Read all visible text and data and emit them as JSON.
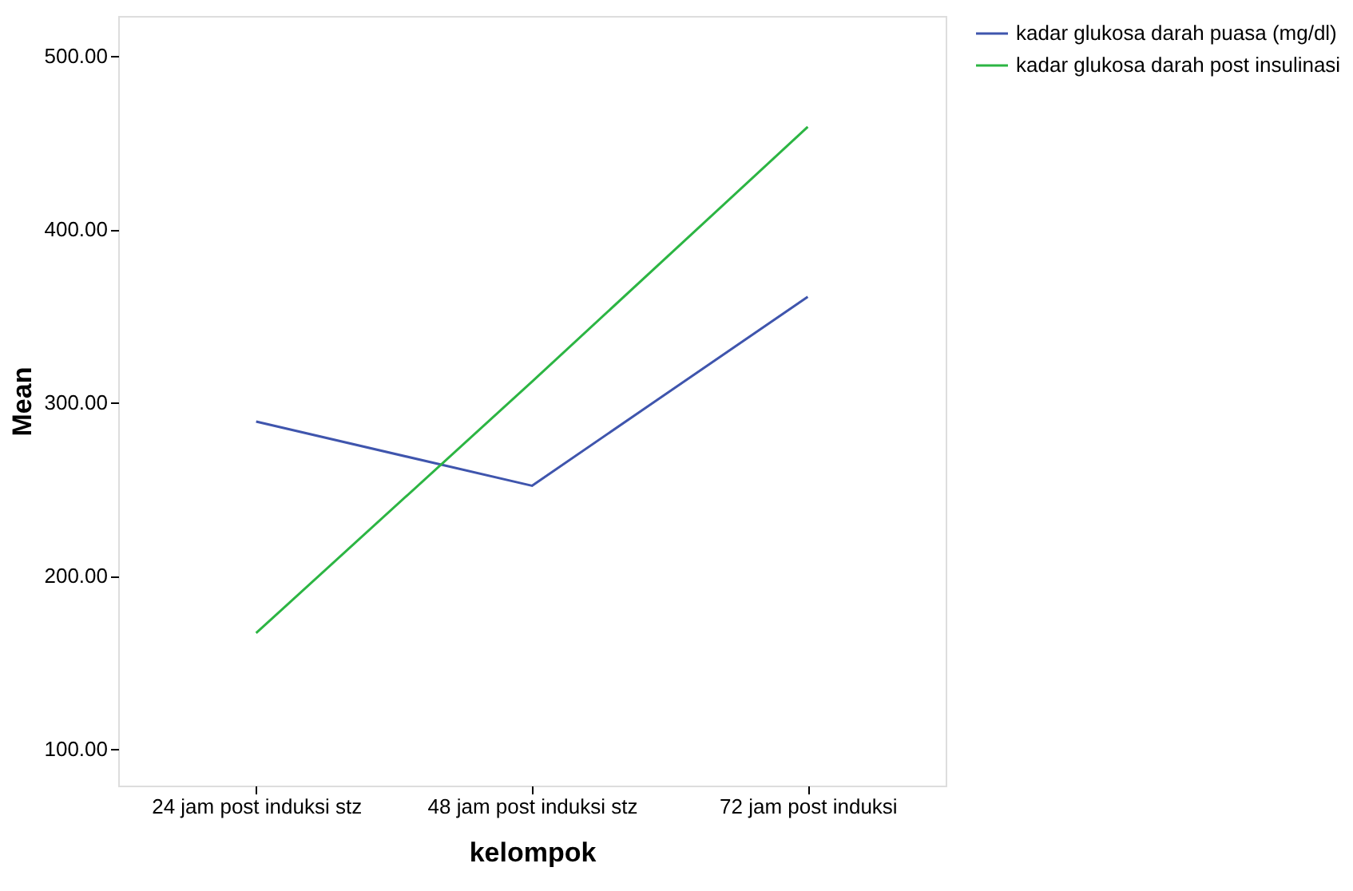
{
  "chart_data": {
    "type": "line",
    "xlabel": "kelompok",
    "ylabel": "Mean",
    "categories": [
      "24 jam post induksi stz",
      "48 jam post induksi stz",
      "72 jam post induksi"
    ],
    "series": [
      {
        "name": "kadar glukosa darah puasa (mg/dl)",
        "color": "#3f55ad",
        "values": [
          289,
          252,
          361
        ]
      },
      {
        "name": "kadar glukosa darah post insulinasi",
        "color": "#2cb543",
        "values": [
          167,
          312,
          459
        ]
      }
    ],
    "ylim": [
      79,
      523
    ],
    "yticks": [
      {
        "value": 100,
        "label": "100.00"
      },
      {
        "value": 200,
        "label": "200.00"
      },
      {
        "value": 300,
        "label": "300.00"
      },
      {
        "value": 400,
        "label": "400.00"
      },
      {
        "value": 500,
        "label": "500.00"
      }
    ],
    "grid": false,
    "legend": "top right",
    "marker": "none",
    "line_style": "solid"
  }
}
